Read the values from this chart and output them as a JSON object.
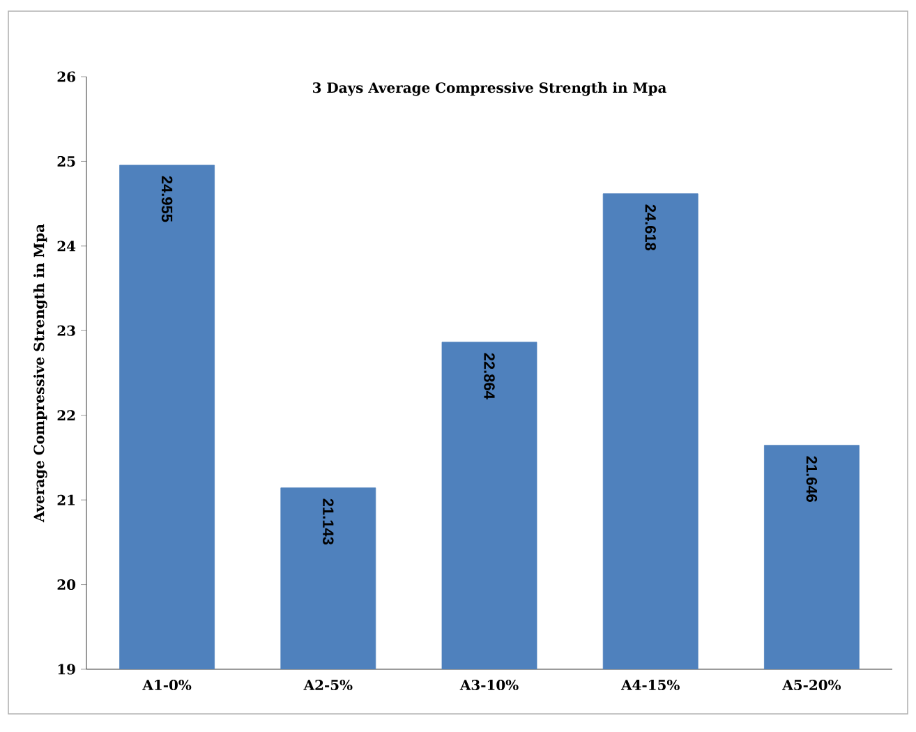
{
  "chart_data": {
    "type": "bar",
    "title": "3 Days Average Compressive Strength in Mpa",
    "ylabel": "Average Compressive Strength in Mpa",
    "categories": [
      "A1-0%",
      "A2-5%",
      "A3-10%",
      "A4-15%",
      "A5-20%"
    ],
    "values": [
      24.955,
      21.143,
      22.864,
      24.618,
      21.646
    ],
    "color": "#4f81bd",
    "ylim": [
      19,
      26
    ],
    "yticks": [
      19,
      20,
      21,
      22,
      23,
      24,
      25,
      26
    ],
    "data_labels": true,
    "grid": false
  }
}
